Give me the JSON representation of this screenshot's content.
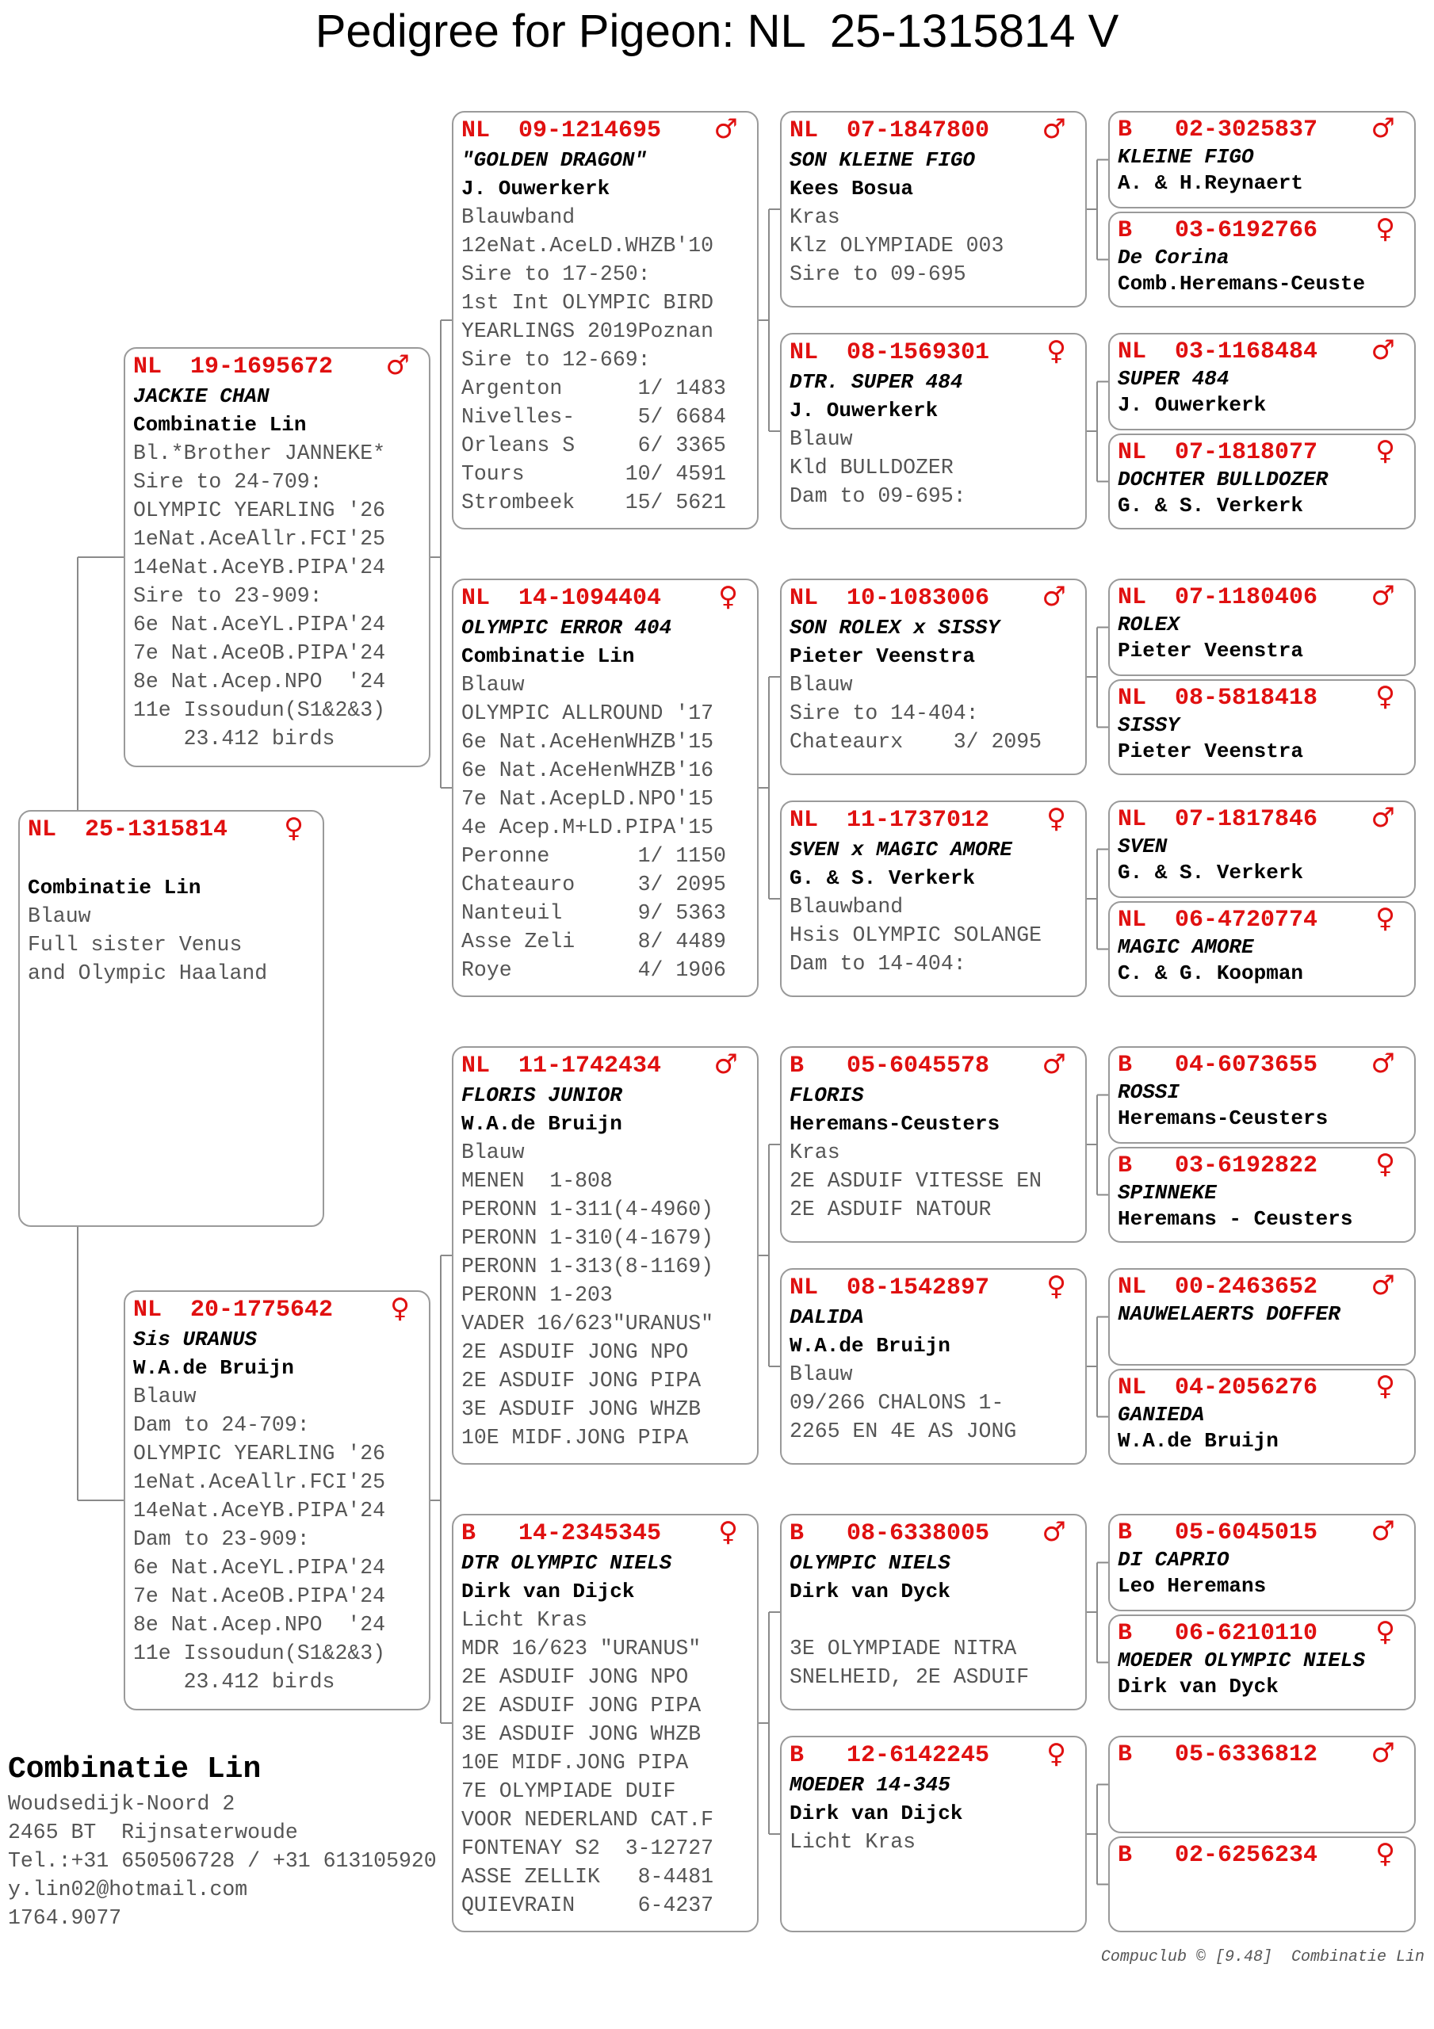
{
  "title": "Pedigree for Pigeon: NL  25-1315814 V",
  "colors": {
    "ring": "#e01010",
    "border": "#9a9a9a",
    "text": "#555555"
  },
  "pedigree": {
    "gen0": [
      {
        "country": "NL",
        "ring": "25-1315814",
        "sex": "♀",
        "name": "",
        "owner": "Combinatie Lin",
        "lines": [
          "Blauw",
          "Full sister Venus",
          "and Olympic Haaland"
        ]
      }
    ],
    "gen1": [
      {
        "country": "NL",
        "ring": "19-1695672",
        "sex": "♂",
        "name": "JACKIE CHAN",
        "owner": "Combinatie Lin",
        "lines": [
          "Bl.*Brother JANNEKE*",
          "Sire to 24-709:",
          "OLYMPIC YEARLING '26",
          "1eNat.AceAllr.FCI'25",
          "14eNat.AceYB.PIPA'24",
          "Sire to 23-909:",
          "6e Nat.AceYL.PIPA'24",
          "7e Nat.AceOB.PIPA'24",
          "8e Nat.Acep.NPO  '24",
          "11e Issoudun(S1&2&3)",
          "    23.412 birds"
        ]
      },
      {
        "country": "NL",
        "ring": "20-1775642",
        "sex": "♀",
        "name": "Sis URANUS",
        "owner": "W.A.de Bruijn",
        "lines": [
          "Blauw",
          "Dam to 24-709:",
          "OLYMPIC YEARLING '26",
          "1eNat.AceAllr.FCI'25",
          "14eNat.AceYB.PIPA'24",
          "Dam to 23-909:",
          "6e Nat.AceYL.PIPA'24",
          "7e Nat.AceOB.PIPA'24",
          "8e Nat.Acep.NPO  '24",
          "11e Issoudun(S1&2&3)",
          "    23.412 birds"
        ]
      }
    ],
    "gen2": [
      {
        "country": "NL",
        "ring": "09-1214695",
        "sex": "♂",
        "name": "\"GOLDEN DRAGON\"",
        "owner": "J. Ouwerkerk",
        "lines": [
          "Blauwband",
          "12eNat.AceLD.WHZB'10",
          "Sire to 17-250:",
          "1st Int OLYMPIC BIRD",
          "YEARLINGS 2019Poznan",
          "Sire to 12-669:",
          "Argenton      1/ 1483",
          "Nivelles-     5/ 6684",
          "Orleans S     6/ 3365",
          "Tours        10/ 4591",
          "Strombeek    15/ 5621"
        ]
      },
      {
        "country": "NL",
        "ring": "14-1094404",
        "sex": "♀",
        "name": "OLYMPIC ERROR 404",
        "owner": "Combinatie Lin",
        "lines": [
          "Blauw",
          "OLYMPIC ALLROUND '17",
          "6e Nat.AceHenWHZB'15",
          "6e Nat.AceHenWHZB'16",
          "7e Nat.AcepLD.NPO'15",
          "4e Acep.M+LD.PIPA'15",
          "Peronne       1/ 1150",
          "Chateauro     3/ 2095",
          "Nanteuil      9/ 5363",
          "Asse Zeli     8/ 4489",
          "Roye          4/ 1906"
        ]
      },
      {
        "country": "NL",
        "ring": "11-1742434",
        "sex": "♂",
        "name": "FLORIS JUNIOR",
        "owner": "W.A.de Bruijn",
        "lines": [
          "Blauw",
          "MENEN  1-808",
          "PERONN 1-311(4-4960)",
          "PERONN 1-310(4-1679)",
          "PERONN 1-313(8-1169)",
          "PERONN 1-203",
          "VADER 16/623\"URANUS\"",
          "2E ASDUIF JONG NPO",
          "2E ASDUIF JONG PIPA",
          "3E ASDUIF JONG WHZB",
          "10E MIDF.JONG PIPA"
        ]
      },
      {
        "country": "B",
        "ring": "14-2345345",
        "sex": "♀",
        "name": "DTR OLYMPIC NIELS",
        "owner": "Dirk van Dijck",
        "lines": [
          "Licht Kras",
          "MDR 16/623 \"URANUS\"",
          "2E ASDUIF JONG NPO",
          "2E ASDUIF JONG PIPA",
          "3E ASDUIF JONG WHZB",
          "10E MIDF.JONG PIPA",
          "7E OLYMPIADE DUIF",
          "VOOR NEDERLAND CAT.F",
          "FONTENAY S2  3-12727",
          "ASSE ZELLIK   8-4481",
          "QUIEVRAIN     6-4237"
        ]
      }
    ],
    "gen3": [
      {
        "country": "NL",
        "ring": "07-1847800",
        "sex": "♂",
        "name": "SON KLEINE FIGO",
        "owner": "Kees Bosua",
        "lines": [
          "Kras",
          "Klz OLYMPIADE 003",
          "Sire to 09-695"
        ]
      },
      {
        "country": "NL",
        "ring": "08-1569301",
        "sex": "♀",
        "name": "DTR. SUPER 484",
        "owner": "J. Ouwerkerk",
        "lines": [
          "Blauw",
          "Kld BULLDOZER",
          "Dam to 09-695:"
        ]
      },
      {
        "country": "NL",
        "ring": "10-1083006",
        "sex": "♂",
        "name": "SON ROLEX x SISSY",
        "owner": "Pieter Veenstra",
        "lines": [
          "Blauw",
          "Sire to 14-404:",
          "Chateaurx    3/ 2095"
        ]
      },
      {
        "country": "NL",
        "ring": "11-1737012",
        "sex": "♀",
        "name": "SVEN x MAGIC AMORE",
        "owner": "G. & S. Verkerk",
        "lines": [
          "Blauwband",
          "Hsis OLYMPIC SOLANGE",
          "Dam to 14-404:"
        ]
      },
      {
        "country": "B",
        "ring": "05-6045578",
        "sex": "♂",
        "name": "FLORIS",
        "owner": "Heremans-Ceusters",
        "lines": [
          "Kras",
          "2E ASDUIF VITESSE EN",
          "2E ASDUIF NATOUR"
        ]
      },
      {
        "country": "NL",
        "ring": "08-1542897",
        "sex": "♀",
        "name": "DALIDA",
        "owner": "W.A.de Bruijn",
        "lines": [
          "Blauw",
          "09/266 CHALONS 1-",
          "2265 EN 4E AS JONG"
        ]
      },
      {
        "country": "B",
        "ring": "08-6338005",
        "sex": "♂",
        "name": "OLYMPIC NIELS",
        "owner": "Dirk van Dyck",
        "lines": [
          "",
          "3E OLYMPIADE NITRA",
          "SNELHEID, 2E ASDUIF"
        ]
      },
      {
        "country": "B",
        "ring": "12-6142245",
        "sex": "♀",
        "name": "MOEDER 14-345",
        "owner": "Dirk van Dijck",
        "lines": [
          "Licht Kras"
        ]
      }
    ],
    "gen4": [
      {
        "country": "B",
        "ring": "02-3025837",
        "sex": "♂",
        "name": "KLEINE FIGO",
        "owner": "A. & H.Reynaert"
      },
      {
        "country": "B",
        "ring": "03-6192766",
        "sex": "♀",
        "name": "De Corina",
        "owner": "Comb.Heremans-Ceuste"
      },
      {
        "country": "NL",
        "ring": "03-1168484",
        "sex": "♂",
        "name": "SUPER 484",
        "owner": "J. Ouwerkerk"
      },
      {
        "country": "NL",
        "ring": "07-1818077",
        "sex": "♀",
        "name": "DOCHTER BULLDOZER",
        "owner": "G. & S. Verkerk"
      },
      {
        "country": "NL",
        "ring": "07-1180406",
        "sex": "♂",
        "name": "ROLEX",
        "owner": "Pieter Veenstra"
      },
      {
        "country": "NL",
        "ring": "08-5818418",
        "sex": "♀",
        "name": "SISSY",
        "owner": "Pieter Veenstra"
      },
      {
        "country": "NL",
        "ring": "07-1817846",
        "sex": "♂",
        "name": "SVEN",
        "owner": "G. & S. Verkerk"
      },
      {
        "country": "NL",
        "ring": "06-4720774",
        "sex": "♀",
        "name": "MAGIC AMORE",
        "owner": "C. & G. Koopman"
      },
      {
        "country": "B",
        "ring": "04-6073655",
        "sex": "♂",
        "name": "ROSSI",
        "owner": "Heremans-Ceusters"
      },
      {
        "country": "B",
        "ring": "03-6192822",
        "sex": "♀",
        "name": "SPINNEKE",
        "owner": "Heremans - Ceusters"
      },
      {
        "country": "NL",
        "ring": "00-2463652",
        "sex": "♂",
        "name": "NAUWELAERTS DOFFER",
        "owner": ""
      },
      {
        "country": "NL",
        "ring": "04-2056276",
        "sex": "♀",
        "name": "GANIEDA",
        "owner": "W.A.de Bruijn"
      },
      {
        "country": "B",
        "ring": "05-6045015",
        "sex": "♂",
        "name": "DI CAPRIO",
        "owner": "Leo Heremans"
      },
      {
        "country": "B",
        "ring": "06-6210110",
        "sex": "♀",
        "name": "MOEDER OLYMPIC NIELS",
        "owner": "Dirk van Dyck"
      },
      {
        "country": "B",
        "ring": "05-6336812",
        "sex": "♂",
        "name": "",
        "owner": ""
      },
      {
        "country": "B",
        "ring": "02-6256234",
        "sex": "♀",
        "name": "",
        "owner": ""
      }
    ]
  },
  "breeder": {
    "name": "Combinatie Lin",
    "address": "Woudsedijk-Noord 2",
    "city": "2465 BT  Rijnsaterwoude",
    "phone": "Tel.:+31 650506728 / +31 613105920",
    "email": "y.lin02@hotmail.com",
    "id": "1764.9077"
  },
  "footer": "Compuclub © [9.48]  Combinatie Lin"
}
